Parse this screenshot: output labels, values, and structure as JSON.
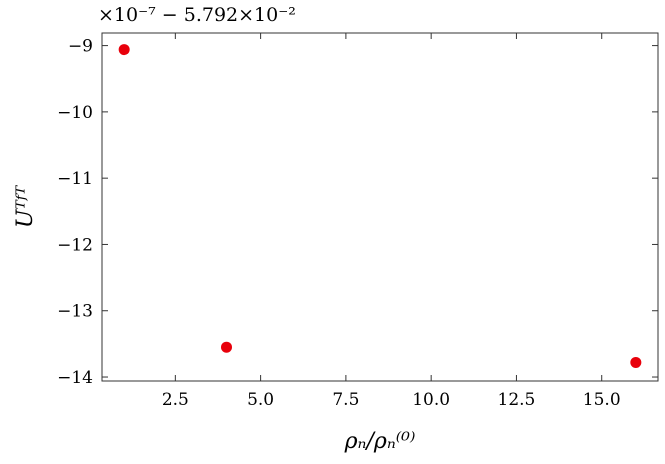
{
  "chart_data": {
    "type": "scatter",
    "offset_label": "×10⁻⁷ − 5.792×10⁻²",
    "xlabel": "ρₙ/ρₙ⁽⁰⁾",
    "ylabel": "Uᵀᶠᵀ",
    "xlim": [
      0.35,
      16.65
    ],
    "ylim": [
      -14.06,
      -8.81
    ],
    "xticks": [
      2.5,
      5.0,
      7.5,
      10.0,
      12.5,
      15.0
    ],
    "xtick_labels": [
      "2.5",
      "5.0",
      "7.5",
      "10.0",
      "12.5",
      "15.0"
    ],
    "yticks": [
      -9,
      -10,
      -11,
      -12,
      -13,
      -14
    ],
    "ytick_labels": [
      "−9",
      "−10",
      "−11",
      "−12",
      "−13",
      "−14"
    ],
    "grid": false,
    "marker_color": "#e8000b",
    "points": [
      {
        "x": 1,
        "y": -9.06
      },
      {
        "x": 4,
        "y": -13.55
      },
      {
        "x": 16,
        "y": -13.78
      }
    ]
  }
}
